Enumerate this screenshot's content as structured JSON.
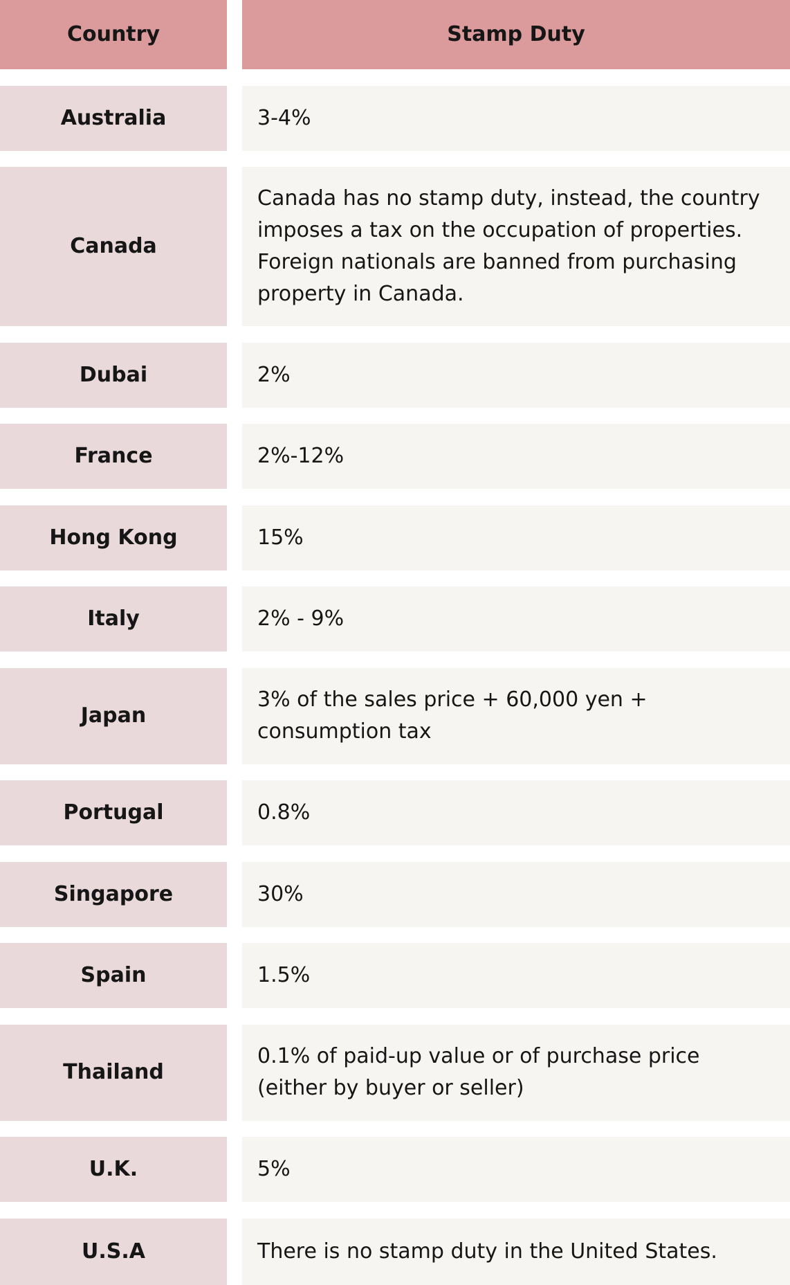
{
  "header": {
    "country": "Country",
    "stamp_duty": "Stamp Duty"
  },
  "rows": [
    {
      "country": "Australia",
      "stamp_duty": "3-4%"
    },
    {
      "country": "Canada",
      "stamp_duty": "Canada has no stamp duty, instead, the country imposes a tax on the occupation of properties. Foreign nationals are banned from purchasing property in Canada."
    },
    {
      "country": "Dubai",
      "stamp_duty": "2%"
    },
    {
      "country": "France",
      "stamp_duty": "2%-12%"
    },
    {
      "country": "Hong Kong",
      "stamp_duty": "15%"
    },
    {
      "country": "Italy",
      "stamp_duty": "2% - 9%"
    },
    {
      "country": "Japan",
      "stamp_duty": "3% of the sales price + 60,000 yen + consumption tax"
    },
    {
      "country": "Portugal",
      "stamp_duty": "0.8%"
    },
    {
      "country": "Singapore",
      "stamp_duty": "30%"
    },
    {
      "country": "Spain",
      "stamp_duty": "1.5%"
    },
    {
      "country": "Thailand",
      "stamp_duty": "0.1% of paid-up value or of purchase price (either by buyer or seller)"
    },
    {
      "country": "U.K.",
      "stamp_duty": "5%"
    },
    {
      "country": "U.S.A",
      "stamp_duty": "There is no stamp duty in the United States."
    }
  ]
}
